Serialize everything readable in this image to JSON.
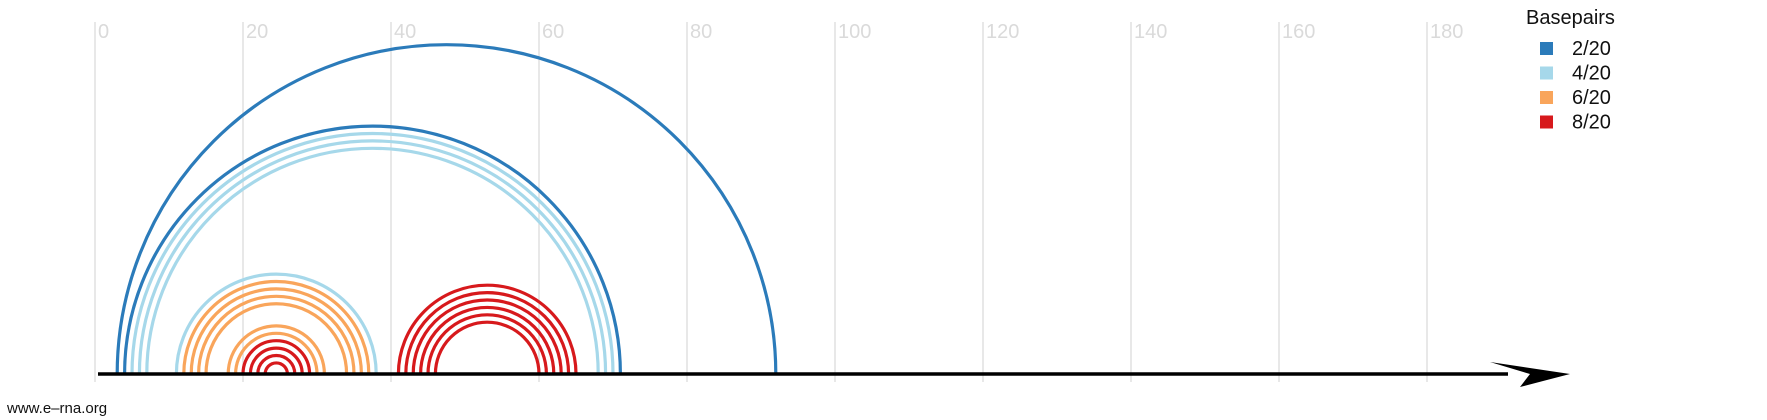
{
  "chart_data": {
    "type": "arc-diagram",
    "x_ticks": [
      0,
      20,
      40,
      60,
      80,
      100,
      120,
      140,
      160,
      180
    ],
    "xlim": [
      0,
      198
    ],
    "legend": {
      "title": "Basepairs",
      "position": "top-right",
      "entries": [
        {
          "label": "2/20",
          "color": "#2b7bba"
        },
        {
          "label": "4/20",
          "color": "#a6d8ea"
        },
        {
          "label": "6/20",
          "color": "#f9a55b"
        },
        {
          "label": "8/20",
          "color": "#d7191c"
        }
      ]
    },
    "arcs": [
      {
        "i": 3,
        "j": 92,
        "group": 0
      },
      {
        "i": 4,
        "j": 71,
        "group": 0
      },
      {
        "i": 5,
        "j": 70,
        "group": 1
      },
      {
        "i": 6,
        "j": 69,
        "group": 1
      },
      {
        "i": 7,
        "j": 68,
        "group": 1
      },
      {
        "i": 11,
        "j": 38,
        "group": 1
      },
      {
        "i": 12,
        "j": 37,
        "group": 2
      },
      {
        "i": 13,
        "j": 36,
        "group": 2
      },
      {
        "i": 14,
        "j": 35,
        "group": 2
      },
      {
        "i": 15,
        "j": 34,
        "group": 2
      },
      {
        "i": 18,
        "j": 31,
        "group": 2
      },
      {
        "i": 19,
        "j": 30,
        "group": 2
      },
      {
        "i": 20,
        "j": 29,
        "group": 3
      },
      {
        "i": 21,
        "j": 28,
        "group": 3
      },
      {
        "i": 22,
        "j": 27,
        "group": 3
      },
      {
        "i": 23,
        "j": 26,
        "group": 3
      },
      {
        "i": 41,
        "j": 65,
        "group": 3
      },
      {
        "i": 42,
        "j": 64,
        "group": 3
      },
      {
        "i": 43,
        "j": 63,
        "group": 3
      },
      {
        "i": 44,
        "j": 62,
        "group": 3
      },
      {
        "i": 45,
        "j": 61,
        "group": 3
      },
      {
        "i": 46,
        "j": 60,
        "group": 3
      }
    ]
  },
  "footer": {
    "credit": "www.e–rna.org"
  }
}
